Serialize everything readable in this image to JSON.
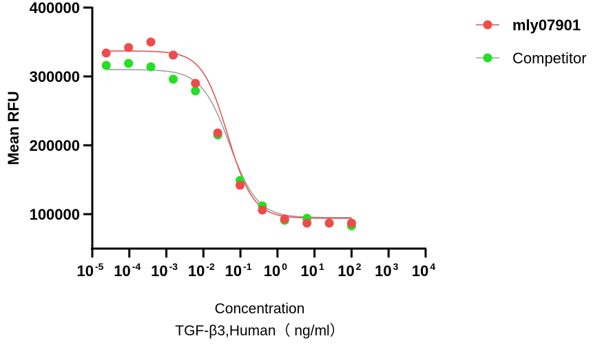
{
  "chart_data": {
    "type": "scatter",
    "title": "",
    "xlabel": "Concentration",
    "xlabel_line2": "TGF-β3,Human（ ng/ml）",
    "ylabel": "Mean RFU",
    "xscale": "log10",
    "xlim": [
      1e-05,
      10000
    ],
    "ylim": [
      50000,
      400000
    ],
    "x_ticks": [
      {
        "base": "10",
        "exp": "-5"
      },
      {
        "base": "10",
        "exp": "-4"
      },
      {
        "base": "10",
        "exp": "-3"
      },
      {
        "base": "10",
        "exp": "-2"
      },
      {
        "base": "10",
        "exp": "-1"
      },
      {
        "base": "10",
        "exp": "0"
      },
      {
        "base": "10",
        "exp": "1"
      },
      {
        "base": "10",
        "exp": "2"
      },
      {
        "base": "10",
        "exp": "3"
      },
      {
        "base": "10",
        "exp": "4"
      }
    ],
    "y_ticks": [
      "100000",
      "200000",
      "300000",
      "400000"
    ],
    "y_tick_values": [
      100000,
      200000,
      300000,
      400000
    ],
    "grid": false,
    "legend_position": "top-right",
    "x": [
      2.38e-05,
      9.54e-05,
      0.000381,
      0.00153,
      0.0061,
      0.0244,
      0.0977,
      0.391,
      1.5625,
      6.25,
      25,
      100
    ],
    "series": [
      {
        "name": "mly07901",
        "color": "#ef4b4b",
        "line_color": "#e05555",
        "values": [
          334000,
          342000,
          350000,
          331000,
          290000,
          218000,
          142000,
          106000,
          93000,
          87000,
          87000,
          87000
        ],
        "fit": {
          "model": "4PL",
          "top": 337000,
          "bottom": 94000,
          "ec50": 0.045,
          "hill": 1.25
        }
      },
      {
        "name": "Competitor",
        "color": "#22e022",
        "line_color": "#a0a0a0",
        "values": [
          316000,
          319000,
          314000,
          296000,
          279000,
          215000,
          149000,
          112000,
          91000,
          94000,
          87000,
          83000
        ],
        "fit": {
          "model": "4PL",
          "top": 310000,
          "bottom": 95000,
          "ec50": 0.05,
          "hill": 1.15
        }
      }
    ]
  }
}
